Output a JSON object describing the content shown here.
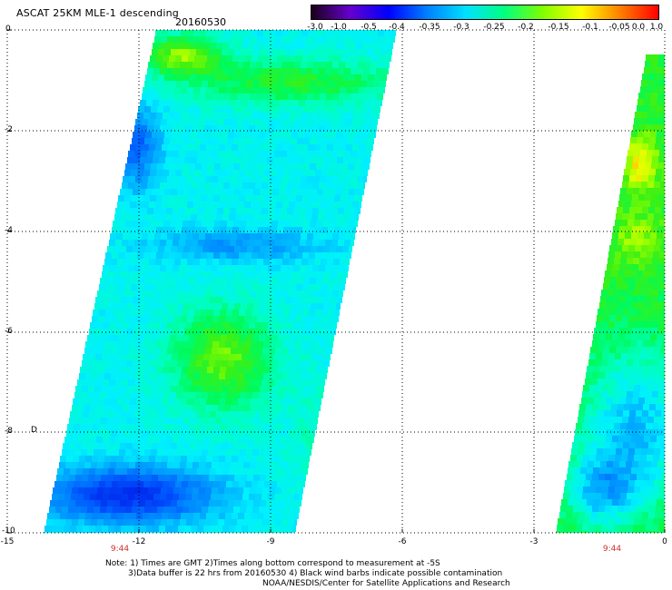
{
  "header": {
    "title": "ASCAT 25KM MLE-1 descending",
    "date": "20160530"
  },
  "colorbar": {
    "tick_labels": [
      "-3.0",
      "-1.0",
      "-0.5",
      "-0.4",
      "-0.35",
      "-0.3",
      "-0.25",
      "-0.2",
      "-0.15",
      "-0.1",
      "-0.05",
      "0.0",
      "1.0"
    ],
    "colors": [
      "#1a001a",
      "#6600cc",
      "#0000ff",
      "#0080ff",
      "#00e0ff",
      "#00ff80",
      "#80ff00",
      "#ffff00",
      "#ff8000",
      "#ff0000"
    ]
  },
  "axes": {
    "y_ticks": [
      "0",
      "-2",
      "-4",
      "-6",
      "-8",
      "-10"
    ],
    "x_ticks": [
      "-15",
      "-12",
      "-9",
      "-6",
      "-3",
      "0"
    ],
    "xlim": [
      -15,
      0
    ],
    "ylim": [
      -10,
      0
    ],
    "grid": "dotted"
  },
  "swaths": {
    "left": {
      "time": "9:44"
    },
    "right": {
      "time": "9:44"
    }
  },
  "small_mark": "D",
  "notes": {
    "line1": "Note: 1) Times are GMT 2)Times along bottom correspond to measurement at -5S",
    "line2": "3)Data buffer is 22 hrs from 20160530 4) Black wind barbs indicate possible contamination",
    "line3": "NOAA/NESDIS/Center for Satellite Applications and Research"
  }
}
